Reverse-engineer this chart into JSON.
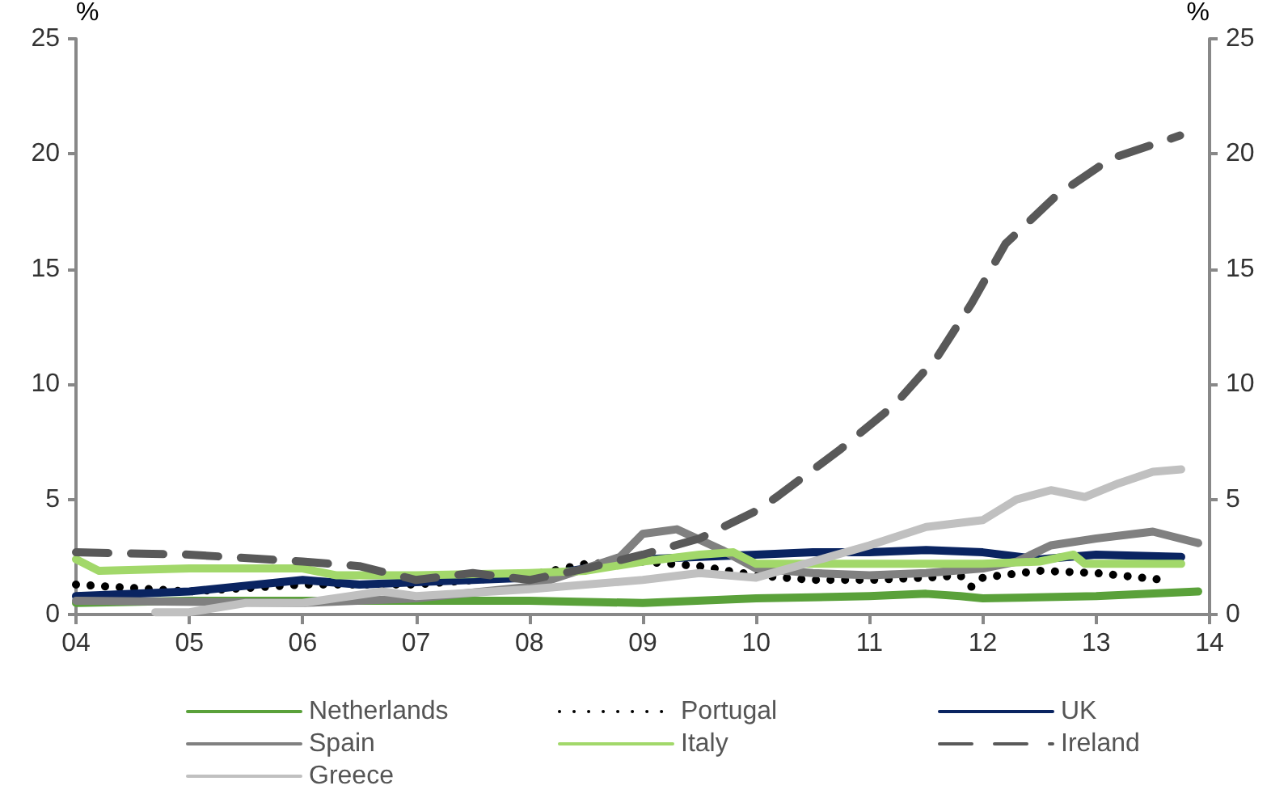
{
  "chart_data": {
    "type": "line",
    "ylabel": "%",
    "y2label": "%",
    "xlim": [
      2004,
      2014
    ],
    "xticks": [
      {
        "value": 2004,
        "label": "04"
      },
      {
        "value": 2005,
        "label": "05"
      },
      {
        "value": 2006,
        "label": "06"
      },
      {
        "value": 2007,
        "label": "07"
      },
      {
        "value": 2008,
        "label": "08"
      },
      {
        "value": 2009,
        "label": "09"
      },
      {
        "value": 2010,
        "label": "10"
      },
      {
        "value": 2011,
        "label": "11"
      },
      {
        "value": 2012,
        "label": "12"
      },
      {
        "value": 2013,
        "label": "13"
      },
      {
        "value": 2014,
        "label": "14"
      }
    ],
    "ylim": [
      0,
      25
    ],
    "yticks": [
      0,
      5,
      10,
      15,
      20,
      25
    ],
    "y2lim": [
      0,
      25
    ],
    "y2ticks": [
      0,
      5,
      10,
      15,
      20,
      25
    ],
    "grid": false,
    "legend": "bottom",
    "marker": "none",
    "series": [
      {
        "name": "Netherlands",
        "color": "#5aa13a",
        "line_style": "solid",
        "x": [
          2004,
          2005,
          2006,
          2007,
          2008,
          2009,
          2010,
          2011,
          2011.5,
          2011.8,
          2012,
          2013,
          2013.9
        ],
        "values": [
          0.5,
          0.6,
          0.6,
          0.6,
          0.6,
          0.5,
          0.7,
          0.8,
          0.9,
          0.8,
          0.7,
          0.8,
          1.0
        ]
      },
      {
        "name": "Portugal",
        "color": "#000000",
        "line_style": "dotted",
        "x": [
          2004,
          2005,
          2006,
          2007,
          2008,
          2008.5,
          2009,
          2009.5,
          2010,
          2010.5,
          2011,
          2011.5,
          2011.8,
          2011.9,
          2012,
          2012.5,
          2013,
          2013.6
        ],
        "values": [
          1.3,
          1.0,
          1.3,
          1.3,
          1.7,
          2.2,
          2.3,
          2.1,
          1.7,
          1.5,
          1.5,
          1.6,
          1.7,
          1.2,
          1.6,
          1.9,
          1.8,
          1.5
        ]
      },
      {
        "name": "UK",
        "color": "#0a2461",
        "line_style": "solid",
        "x": [
          2004,
          2005,
          2006,
          2006.5,
          2007,
          2008,
          2009,
          2009.5,
          2010,
          2010.5,
          2011,
          2011.5,
          2012,
          2012.5,
          2013,
          2013.75
        ],
        "values": [
          0.8,
          1.0,
          1.5,
          1.3,
          1.4,
          1.6,
          2.4,
          2.5,
          2.6,
          2.7,
          2.7,
          2.8,
          2.7,
          2.4,
          2.6,
          2.5
        ]
      },
      {
        "name": "Spain",
        "color": "#808080",
        "line_style": "solid",
        "x": [
          2004,
          2006,
          2007,
          2008,
          2008.8,
          2009,
          2009.3,
          2009.7,
          2010,
          2010.5,
          2011,
          2011.5,
          2012,
          2012.3,
          2012.6,
          2013,
          2013.5,
          2013.9
        ],
        "values": [
          0.6,
          0.5,
          0.7,
          1.2,
          2.5,
          3.5,
          3.7,
          2.8,
          2.0,
          1.8,
          1.7,
          1.8,
          2.0,
          2.3,
          3.0,
          3.3,
          3.6,
          3.1
        ]
      },
      {
        "name": "Italy",
        "color": "#a2d86a",
        "line_style": "solid",
        "x": [
          2004,
          2004.2,
          2005,
          2006,
          2006.3,
          2007,
          2008,
          2008.5,
          2009,
          2009.5,
          2009.8,
          2010,
          2011,
          2012,
          2012.5,
          2012.8,
          2012.9,
          2013.75
        ],
        "values": [
          2.4,
          1.9,
          2.0,
          2.0,
          1.7,
          1.7,
          1.8,
          1.9,
          2.3,
          2.6,
          2.7,
          2.2,
          2.2,
          2.2,
          2.3,
          2.6,
          2.2,
          2.2
        ]
      },
      {
        "name": "Ireland",
        "color": "#595959",
        "line_style": "dashed",
        "x": [
          2004,
          2005,
          2006,
          2006.5,
          2007,
          2007.5,
          2008,
          2008.5,
          2009,
          2009.5,
          2010,
          2010.18,
          2010.75,
          2011.22,
          2011.6,
          2011.9,
          2012.2,
          2012.65,
          2013.13,
          2013.74
        ],
        "values": [
          2.7,
          2.6,
          2.3,
          2.1,
          1.5,
          1.8,
          1.5,
          2.0,
          2.6,
          3.3,
          4.5,
          5.1,
          7.2,
          9.1,
          11.2,
          13.5,
          16.1,
          18.2,
          19.8,
          20.8
        ]
      },
      {
        "name": "Greece",
        "color": "#c0c0c0",
        "line_style": "solid",
        "x": [
          2004.7,
          2005,
          2005.5,
          2006,
          2006.7,
          2007,
          2008,
          2009,
          2009.5,
          2010,
          2010.5,
          2011,
          2011.5,
          2012,
          2012.3,
          2012.6,
          2012.9,
          2013.2,
          2013.5,
          2013.75
        ],
        "values": [
          0.1,
          0.1,
          0.5,
          0.5,
          1.0,
          0.8,
          1.1,
          1.5,
          1.8,
          1.6,
          2.3,
          3.0,
          3.8,
          4.1,
          5.0,
          5.4,
          5.1,
          5.7,
          6.2,
          6.3
        ]
      }
    ]
  }
}
